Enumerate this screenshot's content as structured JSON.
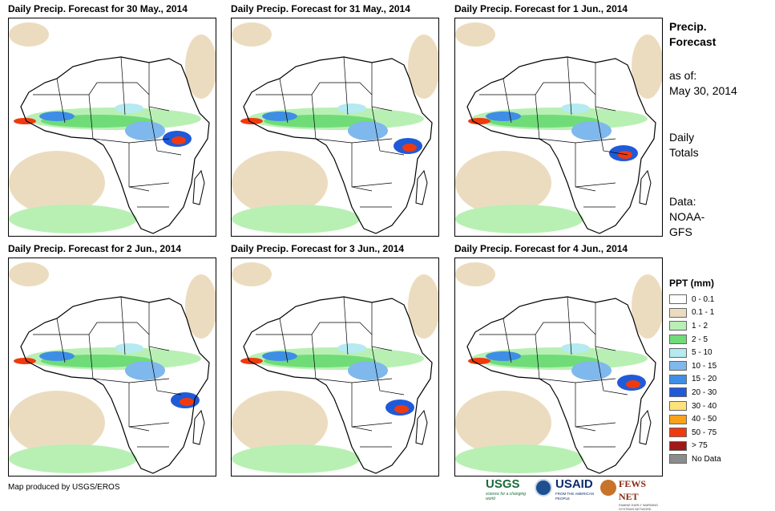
{
  "panels": [
    {
      "title": "Daily Precip. Forecast for 30 May., 2014"
    },
    {
      "title": "Daily Precip. Forecast for 31 May., 2014"
    },
    {
      "title": "Daily Precip. Forecast for 1 Jun., 2014"
    },
    {
      "title": "Daily Precip. Forecast for 2 Jun., 2014"
    },
    {
      "title": "Daily Precip. Forecast for 3 Jun., 2014"
    },
    {
      "title": "Daily Precip. Forecast for 4 Jun., 2014"
    }
  ],
  "sidebar": {
    "title_line1": "Precip.",
    "title_line2": "Forecast",
    "asof_label": "as of:",
    "asof_date": "May 30, 2014",
    "totals_line1": "Daily",
    "totals_line2": "Totals",
    "data_line1": "Data:",
    "data_line2": "NOAA-",
    "data_line3": "GFS"
  },
  "legend": {
    "title": "PPT (mm)",
    "items": [
      {
        "label": "0 - 0.1",
        "color": "#ffffff"
      },
      {
        "label": "0.1 - 1",
        "color": "#ecdcbf"
      },
      {
        "label": "1 - 2",
        "color": "#b8f0b4"
      },
      {
        "label": "2 - 5",
        "color": "#6fdc78"
      },
      {
        "label": "5 - 10",
        "color": "#b4eaf0"
      },
      {
        "label": "10 - 15",
        "color": "#7fb8ec"
      },
      {
        "label": "15 - 20",
        "color": "#3f8ee6"
      },
      {
        "label": "20 - 30",
        "color": "#1f5ad8"
      },
      {
        "label": "30 - 40",
        "color": "#ffe27a"
      },
      {
        "label": "40 - 50",
        "color": "#f7a21a"
      },
      {
        "label": "50 - 75",
        "color": "#f03a0e"
      },
      {
        "label": "> 75",
        "color": "#a01818"
      },
      {
        "label": "No Data",
        "color": "#8c8c8c"
      }
    ]
  },
  "footer": {
    "credit": "Map produced by USGS/EROS",
    "logo_usgs": "USGS",
    "logo_usgs_tag": "science for a changing world",
    "logo_usaid": "USAID",
    "logo_usaid_tag": "FROM THE AMERICAN PEOPLE",
    "logo_fews": "FEWS NET",
    "logo_fews_tag": "FAMINE EARLY WARNING SYSTEMS NETWORK"
  }
}
